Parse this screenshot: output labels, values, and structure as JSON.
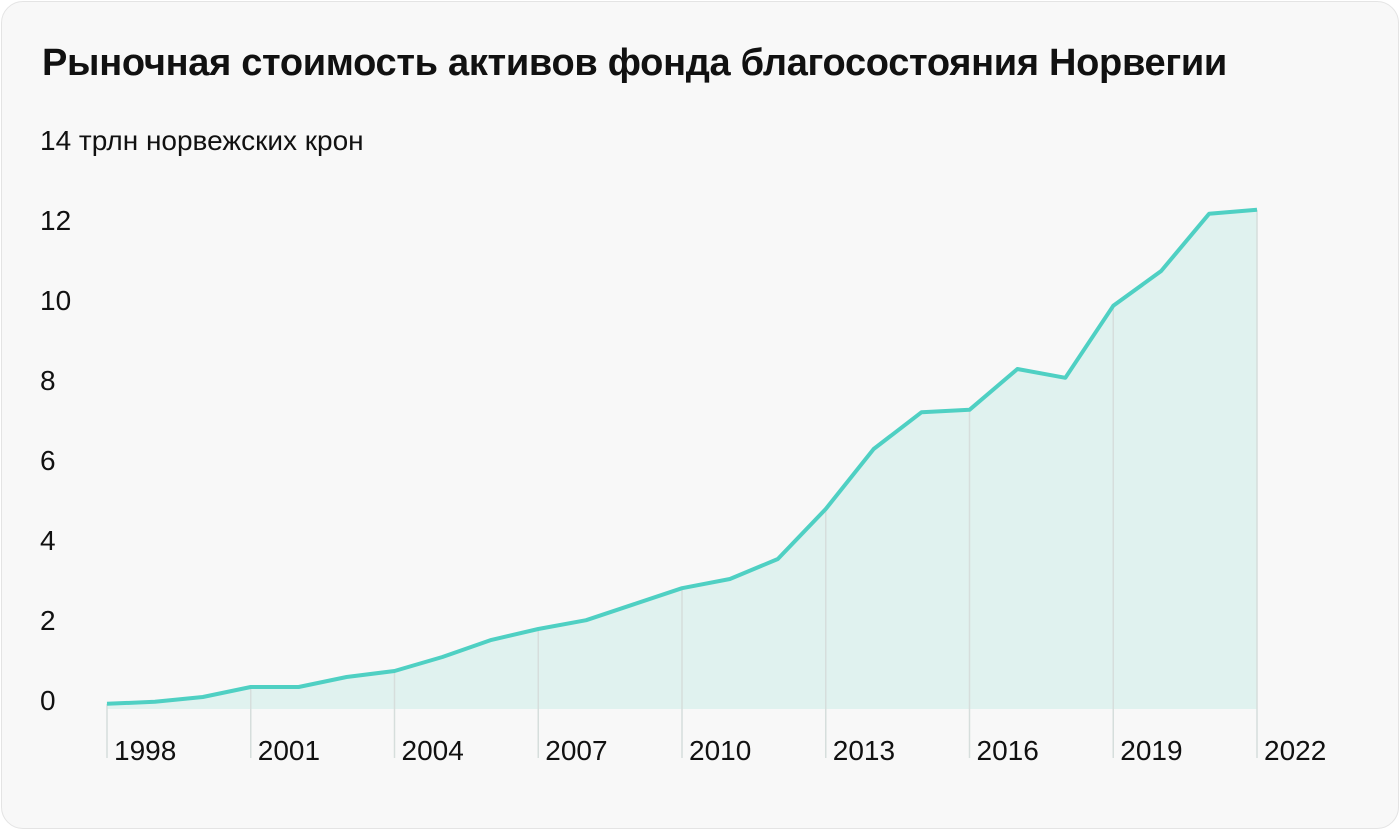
{
  "chart_data": {
    "type": "area",
    "title": "Рыночная стоимость активов фонда благосостояния Норвегии",
    "ylabel": "трлн норвежских крон",
    "x": [
      1998,
      1999,
      2000,
      2001,
      2002,
      2003,
      2004,
      2005,
      2006,
      2007,
      2008,
      2009,
      2010,
      2011,
      2012,
      2013,
      2014,
      2015,
      2016,
      2017,
      2018,
      2019,
      2020,
      2021,
      2022
    ],
    "values": [
      0.13,
      0.18,
      0.3,
      0.55,
      0.55,
      0.8,
      0.95,
      1.3,
      1.72,
      2.0,
      2.22,
      2.62,
      3.02,
      3.25,
      3.75,
      5.0,
      6.5,
      7.42,
      7.48,
      8.5,
      8.28,
      10.08,
      10.95,
      12.38,
      12.48
    ],
    "xticks": [
      "1998",
      "2001",
      "2004",
      "2007",
      "2010",
      "2013",
      "2016",
      "2019",
      "2022"
    ],
    "yticks": [
      "0",
      "2",
      "4",
      "6",
      "8",
      "10",
      "12",
      "14"
    ],
    "top_label": "14 трлн норвежских крон",
    "ylim": [
      0,
      14
    ],
    "xlim": [
      1998,
      2022
    ],
    "grid": "vertical lines at x ticks",
    "colors": {
      "line": "#4fd0c3",
      "fill": "#e0f2ef",
      "grid": "#d6dedc"
    }
  }
}
